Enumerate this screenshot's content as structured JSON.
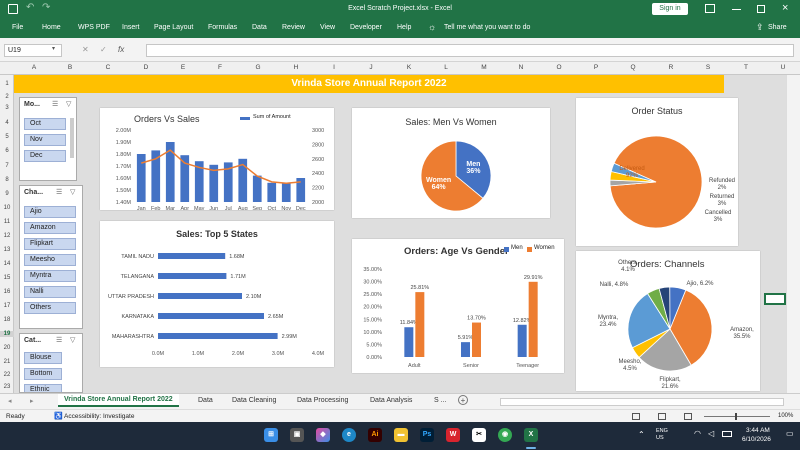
{
  "window": {
    "title": "Excel Scratch Project.xlsx  -  Excel",
    "sign_in": "Sign in",
    "share": "Share"
  },
  "menu": {
    "items": [
      "File",
      "Home",
      "WPS PDF",
      "Insert",
      "Page Layout",
      "Formulas",
      "Data",
      "Review",
      "View",
      "Developer",
      "Help"
    ],
    "tell_me": "Tell me what you want to do"
  },
  "formula_bar": {
    "name_box": "U19",
    "fx": "fx",
    "formula": ""
  },
  "columns": [
    "A",
    "B",
    "C",
    "D",
    "E",
    "F",
    "G",
    "H",
    "I",
    "J",
    "K",
    "L",
    "M",
    "N",
    "O",
    "P",
    "Q",
    "R",
    "S",
    "T",
    "U"
  ],
  "rows": [
    "1",
    "2",
    "3",
    "4",
    "5",
    "6",
    "7",
    "8",
    "9",
    "10",
    "11",
    "12",
    "13",
    "14",
    "15",
    "16",
    "17",
    "18",
    "19",
    "20",
    "21",
    "22",
    "23"
  ],
  "banner": {
    "title": "Vrinda Store Annual Report 2022"
  },
  "slicers": [
    {
      "title": "Mo...",
      "items": [
        "Oct",
        "Nov",
        "Dec"
      ]
    },
    {
      "title": "Cha...",
      "items": [
        "Ajio",
        "Amazon",
        "Flipkart",
        "Meesho",
        "Myntra",
        "Nalli",
        "Others"
      ]
    },
    {
      "title": "Cat...",
      "items": [
        "Blouse",
        "Bottom",
        "Ethnic"
      ]
    }
  ],
  "colors": {
    "blue": "#4472c4",
    "orange": "#ed7d31",
    "gray": "#a5a5a5",
    "yellow": "#ffc000",
    "lightblue": "#5b9bd5",
    "green": "#70ad47",
    "navy": "#264478"
  },
  "chart_data": [
    {
      "type": "bar",
      "title": "Orders Vs Sales",
      "categories": [
        "Jan",
        "Feb",
        "Mar",
        "Apr",
        "May",
        "Jun",
        "Jul",
        "Aug",
        "Sep",
        "Oct",
        "Nov",
        "Dec"
      ],
      "series": [
        {
          "name": "Sum of Amount",
          "type": "bar",
          "values": [
            1.8,
            1.83,
            1.9,
            1.79,
            1.74,
            1.71,
            1.73,
            1.76,
            1.62,
            1.56,
            1.56,
            1.6
          ]
        },
        {
          "name": "",
          "type": "line",
          "values": [
            2540,
            2600,
            2720,
            2540,
            2480,
            2440,
            2460,
            2520,
            2360,
            2280,
            2260,
            2280
          ]
        }
      ],
      "y_ticks": [
        "2.00M",
        "1.90M",
        "1.80M",
        "1.70M",
        "1.60M",
        "1.50M",
        "1.40M"
      ],
      "y2_ticks": [
        "3000",
        "2800",
        "2600",
        "2400",
        "2200",
        "2000"
      ],
      "ylim": [
        1.4,
        2.0
      ],
      "y2lim": [
        2000,
        3000
      ]
    },
    {
      "type": "pie",
      "title": "Sales:  Men Vs Women",
      "categories": [
        "Men",
        "Women"
      ],
      "values": [
        36,
        64
      ],
      "labels": [
        "Men\n36%",
        "Women\n64%"
      ]
    },
    {
      "type": "pie",
      "title": "Order Status",
      "categories": [
        "Delivered",
        "Refunded",
        "Returned",
        "Cancelled"
      ],
      "values": [
        92,
        2,
        3,
        3
      ],
      "labels": [
        "Delivered\n92%",
        "Refunded\n2%",
        "Returned\n3%",
        "Cancelled\n3%"
      ]
    },
    {
      "type": "bar",
      "title": "Sales: Top 5 States",
      "orientation": "horizontal",
      "categories": [
        "TAMIL NADU",
        "TELANGANA",
        "UTTAR PRADESH",
        "KARNATAKA",
        "MAHARASHTRA"
      ],
      "values": [
        1.68,
        1.71,
        2.1,
        2.65,
        2.99
      ],
      "labels": [
        "1.68M",
        "1.71M",
        "2.10M",
        "2.65M",
        "2.99M"
      ],
      "x_ticks": [
        "0.0M",
        "1.0M",
        "2.0M",
        "3.0M",
        "4.0M"
      ],
      "xlim": [
        0,
        4
      ]
    },
    {
      "type": "bar",
      "title": "Orders: Age Vs Gender",
      "categories": [
        "Adult",
        "Senior",
        "Teenager"
      ],
      "series": [
        {
          "name": "Men",
          "values": [
            11.84,
            5.91,
            12.82
          ],
          "labels": [
            "11.84%",
            "5.91%",
            "12.82%"
          ]
        },
        {
          "name": "Women",
          "values": [
            25.81,
            13.7,
            29.91
          ],
          "labels": [
            "25.81%",
            "13.70%",
            "29.91%"
          ]
        }
      ],
      "y_ticks": [
        "35.00%",
        "30.00%",
        "25.00%",
        "20.00%",
        "15.00%",
        "10.00%",
        "5.00%",
        "0.00%"
      ],
      "ylim": [
        0,
        35
      ],
      "legend": "top-right"
    },
    {
      "type": "pie",
      "title": "Orders: Channels",
      "categories": [
        "Amazon",
        "Flipkart",
        "Meesho",
        "Myntra",
        "Nalli",
        "Others",
        "Ajio"
      ],
      "values": [
        35.5,
        21.6,
        4.5,
        23.4,
        4.8,
        4.1,
        6.2
      ],
      "labels": [
        "Amazon,\n35.5%",
        "Flipkart,\n21.6%",
        "Meesho,\n4.5%",
        "Myntra,\n23.4%",
        "Nalli, 4.8%",
        "Others,\n4.1%",
        "Ajio, 6.2%"
      ]
    }
  ],
  "tabs": {
    "items": [
      "Vrinda Store Annual Report 2022",
      "Data",
      "Data Cleaning",
      "Data Processing",
      "Data Analysis",
      "S ..."
    ]
  },
  "status": {
    "ready": "Ready",
    "accessibility": "Accessibility: Investigate",
    "zoom": "100%"
  },
  "taskbar": {
    "time": "3:44 AM",
    "date": "6/10/2026",
    "lang": "ENG\nUS"
  }
}
